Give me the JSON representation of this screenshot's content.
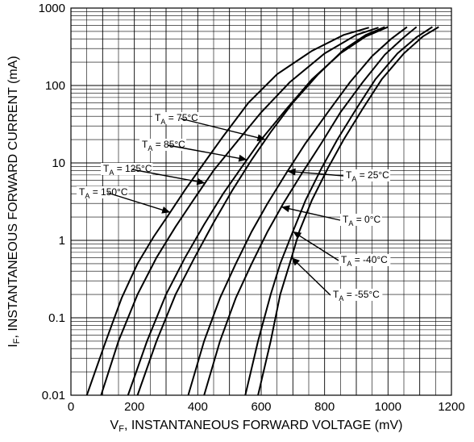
{
  "chart_data": {
    "type": "line",
    "xlabel": "V",
    "xlabel_sub": "F",
    "xlabel_rest": ", INSTANTANEOUS FORWARD VOLTAGE (mV)",
    "ylabel": "I",
    "ylabel_sub": "F",
    "ylabel_rest": ", INSTANTANEOUS FORWARD CURRENT (mA)",
    "xlim": [
      0,
      1200
    ],
    "ylim": [
      0.01,
      1000
    ],
    "yscale": "log",
    "grid": true,
    "x_ticks": [
      "0",
      "200",
      "400",
      "600",
      "800",
      "1000",
      "1200"
    ],
    "y_ticks": [
      "0.01",
      "0.1",
      "1",
      "10",
      "100",
      "1000"
    ],
    "series": [
      {
        "name": "T_A = 150°C",
        "sub": "A",
        "label": " = 150°C",
        "points": [
          [
            50,
            0.01
          ],
          [
            110,
            0.05
          ],
          [
            160,
            0.18
          ],
          [
            210,
            0.5
          ],
          [
            260,
            1.1
          ],
          [
            310,
            2.2
          ],
          [
            360,
            4.5
          ],
          [
            420,
            10
          ],
          [
            480,
            22
          ],
          [
            560,
            60
          ],
          [
            650,
            140
          ],
          [
            760,
            280
          ],
          [
            860,
            450
          ],
          [
            940,
            560
          ]
        ]
      },
      {
        "name": "T_A = 125°C",
        "sub": "A",
        "label": " = 125°C",
        "points": [
          [
            95,
            0.01
          ],
          [
            150,
            0.05
          ],
          [
            210,
            0.2
          ],
          [
            270,
            0.6
          ],
          [
            330,
            1.5
          ],
          [
            390,
            3.5
          ],
          [
            450,
            8
          ],
          [
            520,
            18
          ],
          [
            600,
            45
          ],
          [
            690,
            110
          ],
          [
            800,
            260
          ],
          [
            900,
            450
          ],
          [
            970,
            560
          ]
        ]
      },
      {
        "name": "T_A = 85°C",
        "sub": "A",
        "label": " = 85°C",
        "points": [
          [
            180,
            0.01
          ],
          [
            240,
            0.05
          ],
          [
            300,
            0.2
          ],
          [
            360,
            0.6
          ],
          [
            420,
            1.6
          ],
          [
            480,
            4
          ],
          [
            540,
            9
          ],
          [
            600,
            20
          ],
          [
            680,
            50
          ],
          [
            760,
            120
          ],
          [
            850,
            260
          ],
          [
            930,
            430
          ],
          [
            1000,
            570
          ]
        ]
      },
      {
        "name": "T_A = 75°C",
        "sub": "A",
        "label": " = 75°C",
        "points": [
          [
            210,
            0.01
          ],
          [
            270,
            0.05
          ],
          [
            330,
            0.2
          ],
          [
            390,
            0.6
          ],
          [
            450,
            1.7
          ],
          [
            510,
            4.5
          ],
          [
            570,
            11
          ],
          [
            630,
            25
          ],
          [
            700,
            60
          ],
          [
            780,
            140
          ],
          [
            860,
            290
          ],
          [
            930,
            450
          ],
          [
            990,
            570
          ]
        ]
      },
      {
        "name": "T_A = 25°C",
        "sub": "A",
        "label": " = 25°C",
        "points": [
          [
            370,
            0.01
          ],
          [
            420,
            0.05
          ],
          [
            470,
            0.18
          ],
          [
            520,
            0.5
          ],
          [
            570,
            1.3
          ],
          [
            620,
            3
          ],
          [
            680,
            7.5
          ],
          [
            740,
            18
          ],
          [
            810,
            45
          ],
          [
            880,
            110
          ],
          [
            950,
            240
          ],
          [
            1010,
            400
          ],
          [
            1060,
            570
          ]
        ]
      },
      {
        "name": "T_A = 0°C",
        "sub": "A",
        "label": " = 0°C",
        "points": [
          [
            420,
            0.01
          ],
          [
            470,
            0.05
          ],
          [
            520,
            0.18
          ],
          [
            570,
            0.5
          ],
          [
            620,
            1.3
          ],
          [
            670,
            3
          ],
          [
            730,
            7.5
          ],
          [
            790,
            18
          ],
          [
            850,
            45
          ],
          [
            920,
            110
          ],
          [
            990,
            250
          ],
          [
            1050,
            420
          ],
          [
            1090,
            570
          ]
        ]
      },
      {
        "name": "T_A = -40°C",
        "sub": "A",
        "label": " = -40°C",
        "points": [
          [
            550,
            0.01
          ],
          [
            590,
            0.05
          ],
          [
            630,
            0.2
          ],
          [
            660,
            0.5
          ],
          [
            700,
            1.3
          ],
          [
            740,
            3.3
          ],
          [
            790,
            8.5
          ],
          [
            840,
            20
          ],
          [
            900,
            50
          ],
          [
            960,
            120
          ],
          [
            1030,
            260
          ],
          [
            1090,
            420
          ],
          [
            1140,
            570
          ]
        ]
      },
      {
        "name": "T_A = -55°C",
        "sub": "A",
        "label": " = -55°C",
        "points": [
          [
            590,
            0.01
          ],
          [
            630,
            0.05
          ],
          [
            660,
            0.2
          ],
          [
            690,
            0.5
          ],
          [
            720,
            1.3
          ],
          [
            760,
            3.3
          ],
          [
            810,
            8.5
          ],
          [
            860,
            20
          ],
          [
            920,
            50
          ],
          [
            980,
            120
          ],
          [
            1050,
            260
          ],
          [
            1110,
            430
          ],
          [
            1160,
            570
          ]
        ]
      }
    ],
    "annotations": [
      {
        "series": 3,
        "ax": 750,
        "ay": 20
      },
      {
        "series": 2,
        "ax": 700,
        "ay": 11
      },
      {
        "series": 1,
        "ax": 640,
        "ay": 5.5
      },
      {
        "series": 0,
        "ax": 600,
        "ay": 2.3
      },
      {
        "series": 4,
        "ax": 860,
        "ay": 7.8
      },
      {
        "series": 5,
        "ax": 890,
        "ay": 2.7
      },
      {
        "series": 6,
        "ax": 950,
        "ay": 1.3
      },
      {
        "series": 7,
        "ax": 970,
        "ay": 0.6
      }
    ]
  }
}
